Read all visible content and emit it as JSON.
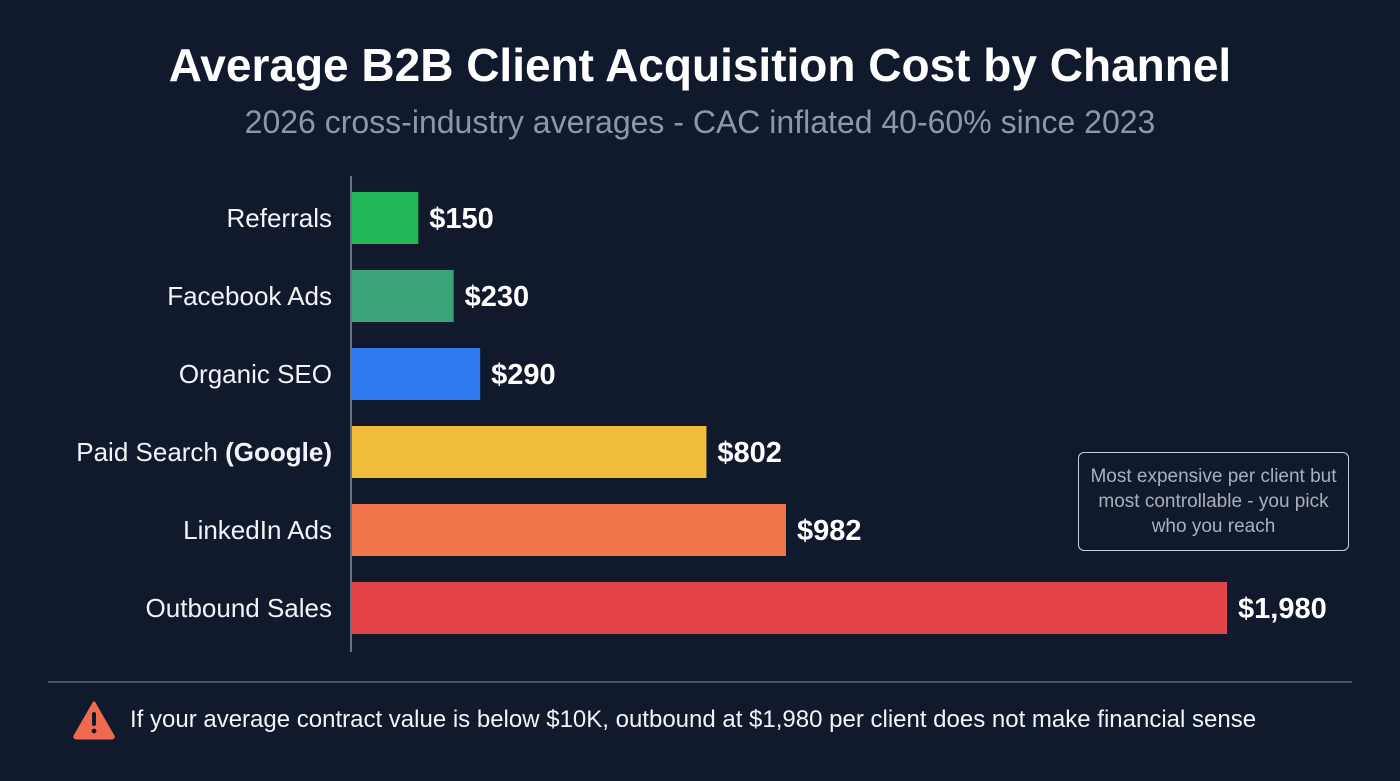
{
  "title": "Average B2B Client Acquisition Cost by Channel",
  "subtitle": "2026 cross-industry averages - CAC inflated 40-60% since 2023",
  "chart_data": {
    "type": "bar",
    "orientation": "horizontal",
    "title": "Average B2B Client Acquisition Cost by Channel",
    "subtitle": "2026 cross-industry averages - CAC inflated 40-60% since 2023",
    "categories": [
      "Referrals",
      "Facebook Ads",
      "Organic SEO",
      "Paid Search (Google)",
      "LinkedIn Ads",
      "Outbound Sales"
    ],
    "category_parts": [
      {
        "plain": "Referrals",
        "bold": ""
      },
      {
        "plain": "Facebook Ads",
        "bold": ""
      },
      {
        "plain": "Organic SEO",
        "bold": ""
      },
      {
        "plain": "Paid Search ",
        "bold": "(Google)"
      },
      {
        "plain": "LinkedIn Ads",
        "bold": ""
      },
      {
        "plain": "Outbound Sales",
        "bold": ""
      }
    ],
    "values": [
      150,
      230,
      290,
      802,
      982,
      1980
    ],
    "data_labels": [
      "$150",
      "$230",
      "$290",
      "$802",
      "$982",
      "$1,980"
    ],
    "colors": [
      "#22b858",
      "#3aa476",
      "#2f7cf0",
      "#f1bb3c",
      "#f2744a",
      "#e4434a"
    ],
    "xlim": [
      0,
      1980
    ],
    "grid": false,
    "xlabel": "",
    "ylabel": ""
  },
  "annotation": "Most expensive per client but most controllable - you pick who you reach",
  "footer": {
    "icon": "warning-triangle-icon",
    "icon_color": "#f06a4f",
    "text": "If your average contract value is below $10K, outbound at $1,980 per client does not make financial sense"
  }
}
